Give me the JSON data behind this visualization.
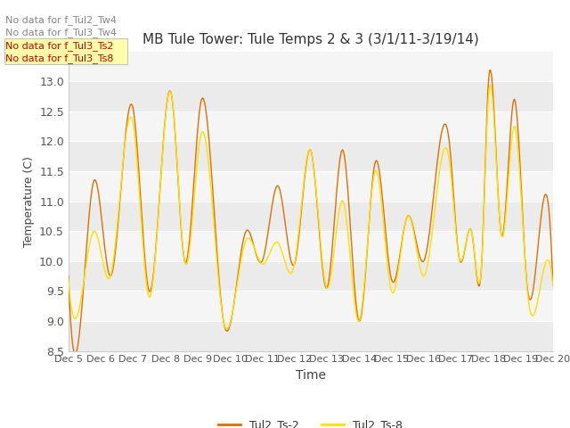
{
  "title": "MB Tule Tower: Tule Temps 2 & 3 (3/1/11-3/19/14)",
  "xlabel": "Time",
  "ylabel": "Temperature (C)",
  "ylim": [
    8.5,
    13.5
  ],
  "yticks": [
    8.5,
    9.0,
    9.5,
    10.0,
    10.5,
    11.0,
    11.5,
    12.0,
    12.5,
    13.0
  ],
  "color_ts2": "#E07000",
  "color_ts8": "#FFE000",
  "legend_labels": [
    "Tul2_Ts-2",
    "Tul2_Ts-8"
  ],
  "nodata_texts": [
    "No data for f_Tul2_Tw4",
    "No data for f_Tul3_Tw4",
    "No data for f_Tul3_Ts2",
    "No data for f_Tul3_Ts8"
  ],
  "nodata_box_color": "#FFFFAA",
  "nodata_text_colors_gray": "#888888",
  "nodata_text_colors_red": "#CC0000",
  "band_colors": [
    "#EBEBEB",
    "#F5F5F5"
  ],
  "figsize": [
    6.4,
    4.8
  ],
  "dpi": 100
}
